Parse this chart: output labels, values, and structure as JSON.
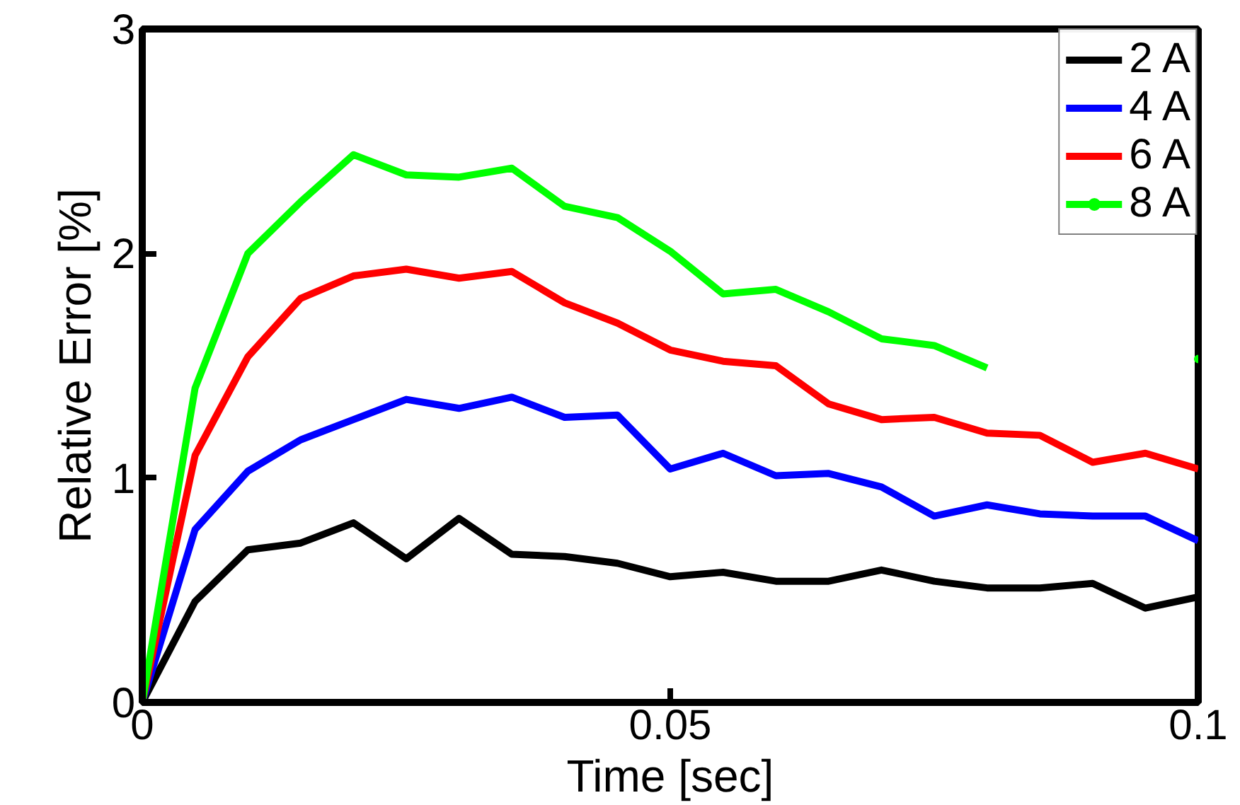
{
  "chart_data": {
    "type": "line",
    "xlabel": "Time [sec]",
    "ylabel": "Relative Error [%]",
    "x": [
      0,
      0.005,
      0.01,
      0.015,
      0.02,
      0.025,
      0.03,
      0.035,
      0.04,
      0.045,
      0.05,
      0.055,
      0.06,
      0.065,
      0.07,
      0.075,
      0.08,
      0.085,
      0.09,
      0.095,
      0.1
    ],
    "series": [
      {
        "name": "2 A",
        "color": "#000000",
        "values": [
          0,
          0.45,
          0.68,
          0.71,
          0.8,
          0.64,
          0.82,
          0.66,
          0.65,
          0.62,
          0.56,
          0.58,
          0.54,
          0.54,
          0.59,
          0.54,
          0.51,
          0.51,
          0.53,
          0.42,
          0.47
        ]
      },
      {
        "name": "4 A",
        "color": "#0000ff",
        "values": [
          0,
          0.77,
          1.03,
          1.17,
          1.26,
          1.35,
          1.31,
          1.36,
          1.27,
          1.28,
          1.04,
          1.11,
          1.01,
          1.02,
          0.96,
          0.83,
          0.88,
          0.84,
          0.83,
          0.83,
          0.72
        ]
      },
      {
        "name": "6 A",
        "color": "#ff0000",
        "values": [
          0,
          1.1,
          1.54,
          1.8,
          1.9,
          1.93,
          1.89,
          1.92,
          1.78,
          1.69,
          1.57,
          1.52,
          1.5,
          1.33,
          1.26,
          1.27,
          1.2,
          1.19,
          1.07,
          1.11,
          1.04
        ]
      },
      {
        "name": "8 A",
        "color": "#00ff00",
        "values": [
          0,
          1.4,
          2.0,
          2.23,
          2.44,
          2.35,
          2.34,
          2.38,
          2.21,
          2.16,
          2.01,
          1.82,
          1.84,
          1.74,
          1.62,
          1.59,
          1.49,
          null,
          null,
          null,
          1.53
        ]
      }
    ],
    "xlim": [
      0,
      0.1
    ],
    "ylim": [
      0,
      3
    ],
    "xticks": [
      0,
      0.05,
      0.1
    ],
    "yticks": [
      0,
      1,
      2,
      3
    ],
    "grid": false,
    "legend": "top right",
    "marker": "none",
    "line_style": "solid"
  }
}
